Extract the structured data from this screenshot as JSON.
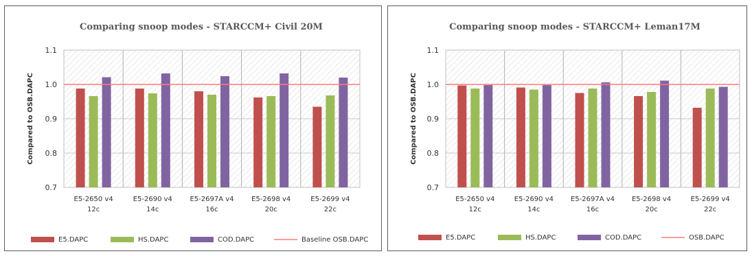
{
  "colors": {
    "E5.DAPC": "#c0504d",
    "HS.DAPC": "#9bbb59",
    "COD.DAPC": "#8064a2",
    "baseline": "#ff7a7a",
    "hatch": "#d9d9d9",
    "plot_border": "#bfbfbf"
  },
  "chart_data": [
    {
      "type": "bar",
      "title": "Comparing snoop modes - STARCCM+ Civil 20M",
      "xlabel": "",
      "ylabel": "Compared to OSB.DAPC",
      "ylim": [
        0.7,
        1.1
      ],
      "yticks": [
        "0.7",
        "0.8",
        "0.9",
        "1.0",
        "1.1"
      ],
      "grid": true,
      "legend_position": "bottom",
      "categories": [
        [
          "E5-2650 v4",
          "12c"
        ],
        [
          "E5-2690 v4",
          "14c"
        ],
        [
          "E5-2697A v4",
          "16c"
        ],
        [
          "E5-2698 v4",
          "20c"
        ],
        [
          "E5-2699 v4",
          "22c"
        ]
      ],
      "series": [
        {
          "name": "E5.DAPC",
          "values": [
            0.988,
            0.988,
            0.98,
            0.962,
            0.935
          ]
        },
        {
          "name": "HS.DAPC",
          "values": [
            0.966,
            0.974,
            0.97,
            0.966,
            0.968
          ]
        },
        {
          "name": "COD.DAPC",
          "values": [
            1.021,
            1.032,
            1.024,
            1.032,
            1.02
          ]
        }
      ],
      "baseline": {
        "name": "Baseline OSB.DAPC",
        "value": 1.0
      }
    },
    {
      "type": "bar",
      "title": "Comparing snoop modes - STARCCM+ Leman17M",
      "xlabel": "",
      "ylabel": "Compared to OSB.DAPC",
      "ylim": [
        0.7,
        1.1
      ],
      "yticks": [
        "0.7",
        "0.8",
        "0.9",
        "1.0",
        "1.1"
      ],
      "grid": true,
      "legend_position": "bottom",
      "categories": [
        [
          "E5-2650 v4",
          "12c"
        ],
        [
          "E5-2690 v4",
          "14c"
        ],
        [
          "E5-2697A v4",
          "16c"
        ],
        [
          "E5-2698 v4",
          "20c"
        ],
        [
          "E5-2699 v4",
          "22c"
        ]
      ],
      "series": [
        {
          "name": "E5.DAPC",
          "values": [
            0.997,
            0.991,
            0.975,
            0.966,
            0.932
          ]
        },
        {
          "name": "HS.DAPC",
          "values": [
            0.988,
            0.985,
            0.988,
            0.978,
            0.988
          ]
        },
        {
          "name": "COD.DAPC",
          "values": [
            0.998,
            0.998,
            1.006,
            1.011,
            0.993
          ]
        }
      ],
      "baseline": {
        "name": "OSB.DAPC",
        "value": 1.0
      }
    }
  ]
}
